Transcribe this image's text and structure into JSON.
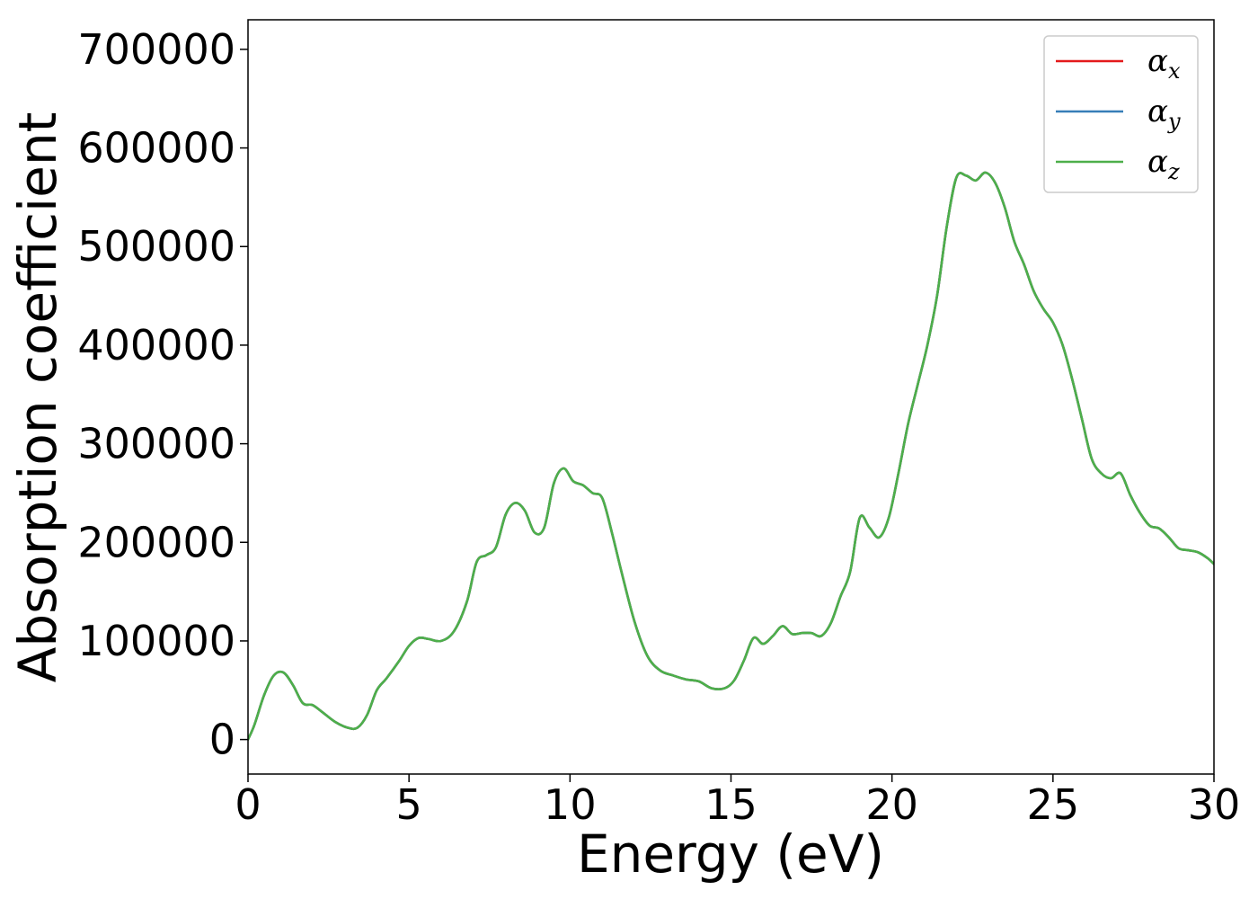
{
  "chart_data": {
    "type": "line",
    "title": "",
    "xlabel": "Energy (eV)",
    "ylabel": "Absorption coefficient",
    "xlim": [
      0,
      30
    ],
    "ylim": [
      -35000,
      730000
    ],
    "xticks": [
      0,
      5,
      10,
      15,
      20,
      25,
      30
    ],
    "yticks": [
      0,
      100000,
      200000,
      300000,
      400000,
      500000,
      600000,
      700000
    ],
    "xtick_labels": [
      "0",
      "5",
      "10",
      "15",
      "20",
      "25",
      "30"
    ],
    "ytick_labels": [
      "0",
      "100000",
      "200000",
      "300000",
      "400000",
      "500000",
      "600000",
      "700000"
    ],
    "grid": false,
    "legend_position": "top-right",
    "x": [
      0,
      0.2,
      0.5,
      0.8,
      1.1,
      1.4,
      1.7,
      2.0,
      2.3,
      2.7,
      3.1,
      3.4,
      3.7,
      4.0,
      4.3,
      4.7,
      5.0,
      5.3,
      5.6,
      6.0,
      6.4,
      6.8,
      7.1,
      7.4,
      7.7,
      8.0,
      8.3,
      8.6,
      8.9,
      9.2,
      9.5,
      9.8,
      10.1,
      10.4,
      10.7,
      11.0,
      11.3,
      11.6,
      12.0,
      12.4,
      12.8,
      13.2,
      13.6,
      14.0,
      14.4,
      14.8,
      15.1,
      15.4,
      15.7,
      16.0,
      16.3,
      16.6,
      16.9,
      17.2,
      17.5,
      17.8,
      18.1,
      18.4,
      18.7,
      19.0,
      19.3,
      19.6,
      19.9,
      20.2,
      20.5,
      20.8,
      21.1,
      21.4,
      21.7,
      22.0,
      22.3,
      22.6,
      22.9,
      23.2,
      23.5,
      23.8,
      24.1,
      24.4,
      24.7,
      25.0,
      25.3,
      25.6,
      25.9,
      26.2,
      26.5,
      26.8,
      27.1,
      27.4,
      27.7,
      28.0,
      28.3,
      28.6,
      28.9,
      29.2,
      29.5,
      29.8,
      30.0
    ],
    "series": [
      {
        "name": "α_x",
        "label_base": "α",
        "label_sub": "x",
        "color": "#e41a1c",
        "values": [
          0,
          15000,
          45000,
          65000,
          68000,
          55000,
          37000,
          35000,
          28000,
          18000,
          12000,
          12000,
          25000,
          50000,
          62000,
          80000,
          95000,
          103000,
          102000,
          100000,
          110000,
          140000,
          180000,
          187000,
          195000,
          228000,
          240000,
          232000,
          210000,
          215000,
          260000,
          275000,
          262000,
          258000,
          250000,
          245000,
          210000,
          170000,
          120000,
          85000,
          70000,
          65000,
          61000,
          59000,
          52000,
          52000,
          60000,
          80000,
          103000,
          97000,
          105000,
          115000,
          107000,
          108000,
          108000,
          105000,
          118000,
          145000,
          170000,
          225000,
          215000,
          205000,
          225000,
          270000,
          320000,
          360000,
          400000,
          450000,
          520000,
          570000,
          572000,
          567000,
          575000,
          565000,
          540000,
          505000,
          482000,
          455000,
          437000,
          423000,
          400000,
          365000,
          325000,
          285000,
          270000,
          265000,
          270000,
          248000,
          230000,
          217000,
          214000,
          205000,
          194000,
          192000,
          190000,
          184000,
          178000
        ]
      },
      {
        "name": "α_y",
        "label_base": "α",
        "label_sub": "y",
        "color": "#377eb8",
        "values": [
          0,
          15000,
          45000,
          65000,
          68000,
          55000,
          37000,
          35000,
          28000,
          18000,
          12000,
          12000,
          25000,
          50000,
          62000,
          80000,
          95000,
          103000,
          102000,
          100000,
          110000,
          140000,
          180000,
          187000,
          195000,
          228000,
          240000,
          232000,
          210000,
          215000,
          260000,
          275000,
          262000,
          258000,
          250000,
          245000,
          210000,
          170000,
          120000,
          85000,
          70000,
          65000,
          61000,
          59000,
          52000,
          52000,
          60000,
          80000,
          103000,
          97000,
          105000,
          115000,
          107000,
          108000,
          108000,
          105000,
          118000,
          145000,
          170000,
          225000,
          215000,
          205000,
          225000,
          270000,
          320000,
          360000,
          400000,
          450000,
          520000,
          570000,
          572000,
          567000,
          575000,
          565000,
          540000,
          505000,
          482000,
          455000,
          437000,
          423000,
          400000,
          365000,
          325000,
          285000,
          270000,
          265000,
          270000,
          248000,
          230000,
          217000,
          214000,
          205000,
          194000,
          192000,
          190000,
          184000,
          178000
        ]
      },
      {
        "name": "α_z",
        "label_base": "α",
        "label_sub": "z",
        "color": "#4daf4a",
        "values": [
          0,
          15000,
          45000,
          65000,
          68000,
          55000,
          37000,
          35000,
          28000,
          18000,
          12000,
          12000,
          25000,
          50000,
          62000,
          80000,
          95000,
          103000,
          102000,
          100000,
          110000,
          140000,
          180000,
          187000,
          195000,
          228000,
          240000,
          232000,
          210000,
          215000,
          260000,
          275000,
          262000,
          258000,
          250000,
          245000,
          210000,
          170000,
          120000,
          85000,
          70000,
          65000,
          61000,
          59000,
          52000,
          52000,
          60000,
          80000,
          103000,
          97000,
          105000,
          115000,
          107000,
          108000,
          108000,
          105000,
          118000,
          145000,
          170000,
          225000,
          215000,
          205000,
          225000,
          270000,
          320000,
          360000,
          400000,
          450000,
          520000,
          570000,
          572000,
          567000,
          575000,
          565000,
          540000,
          505000,
          482000,
          455000,
          437000,
          423000,
          400000,
          365000,
          325000,
          285000,
          270000,
          265000,
          270000,
          248000,
          230000,
          217000,
          214000,
          205000,
          194000,
          192000,
          190000,
          184000,
          178000
        ]
      }
    ]
  }
}
